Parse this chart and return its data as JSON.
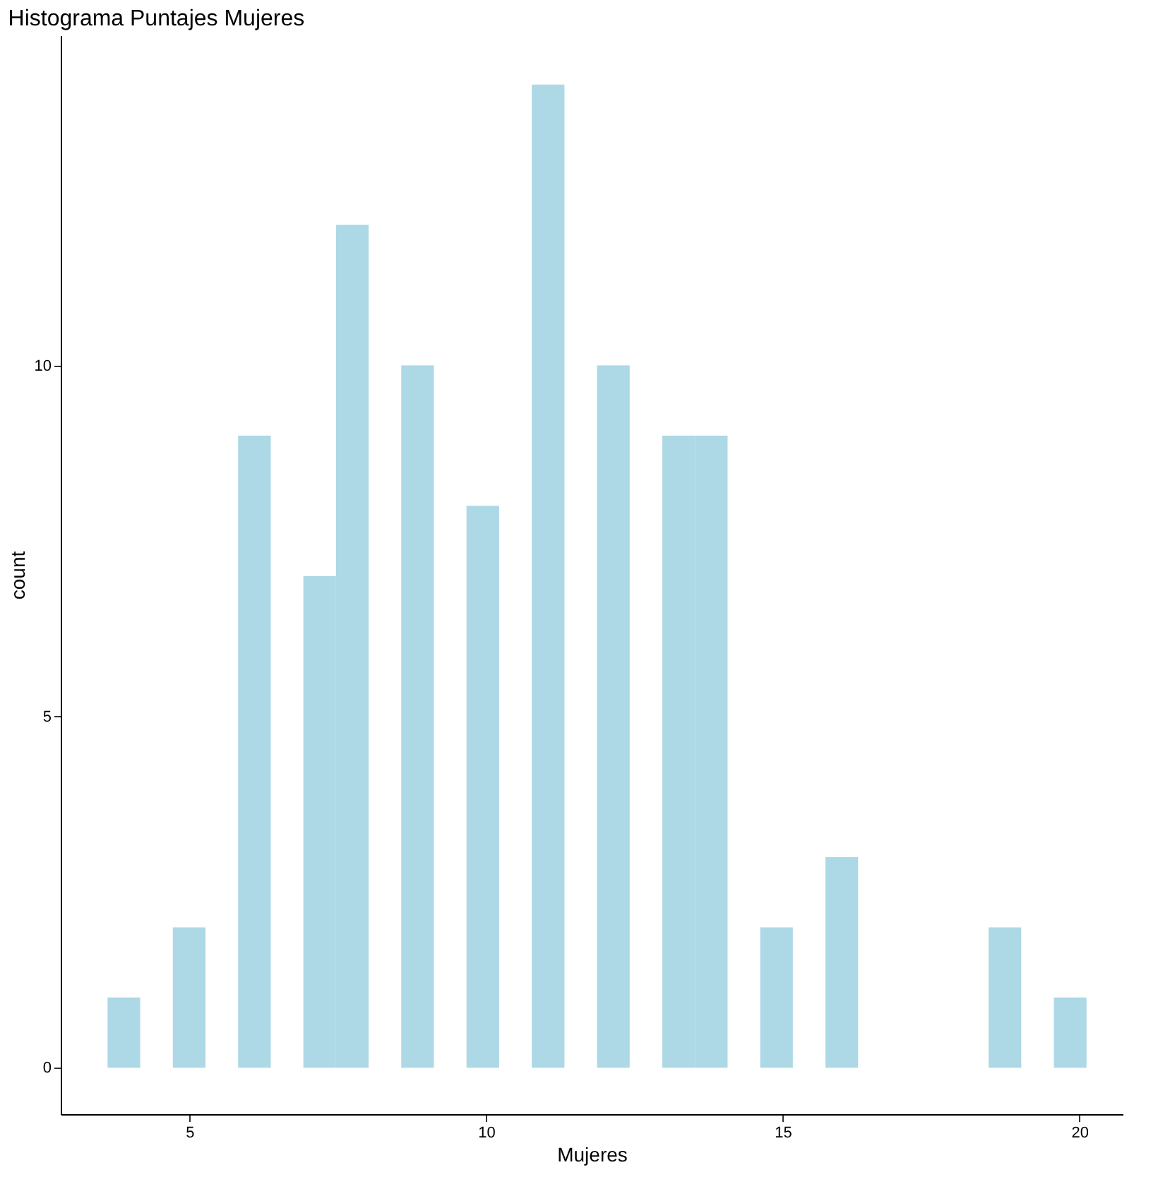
{
  "chart_data": {
    "type": "histogram",
    "title": "Histograma Puntajes Mujeres",
    "xlabel": "Mujeres",
    "ylabel": "count",
    "bins": [
      3.62,
      4.17,
      4.72,
      5.27,
      5.82,
      6.37,
      6.92,
      7.47,
      8.02,
      8.57,
      9.12,
      9.67,
      10.22,
      10.77,
      11.32,
      11.87,
      12.42,
      12.97,
      13.52,
      14.07,
      14.62,
      15.17,
      15.72,
      16.27,
      16.82,
      17.37,
      17.92,
      18.47,
      19.02,
      19.57,
      20.12
    ],
    "values": [
      1,
      0,
      2,
      0,
      9,
      0,
      7,
      12,
      0,
      10,
      0,
      8,
      0,
      14,
      0,
      10,
      0,
      9,
      9,
      0,
      2,
      0,
      3,
      0,
      0,
      0,
      0,
      2,
      0,
      1
    ],
    "color": "#add8e6",
    "xlim": [
      2.83,
      20.73
    ],
    "ylim": [
      -0.66,
      14.7
    ],
    "xticks": [
      5,
      10,
      15,
      20
    ],
    "yticks": [
      0,
      5,
      10
    ],
    "grid": false
  }
}
